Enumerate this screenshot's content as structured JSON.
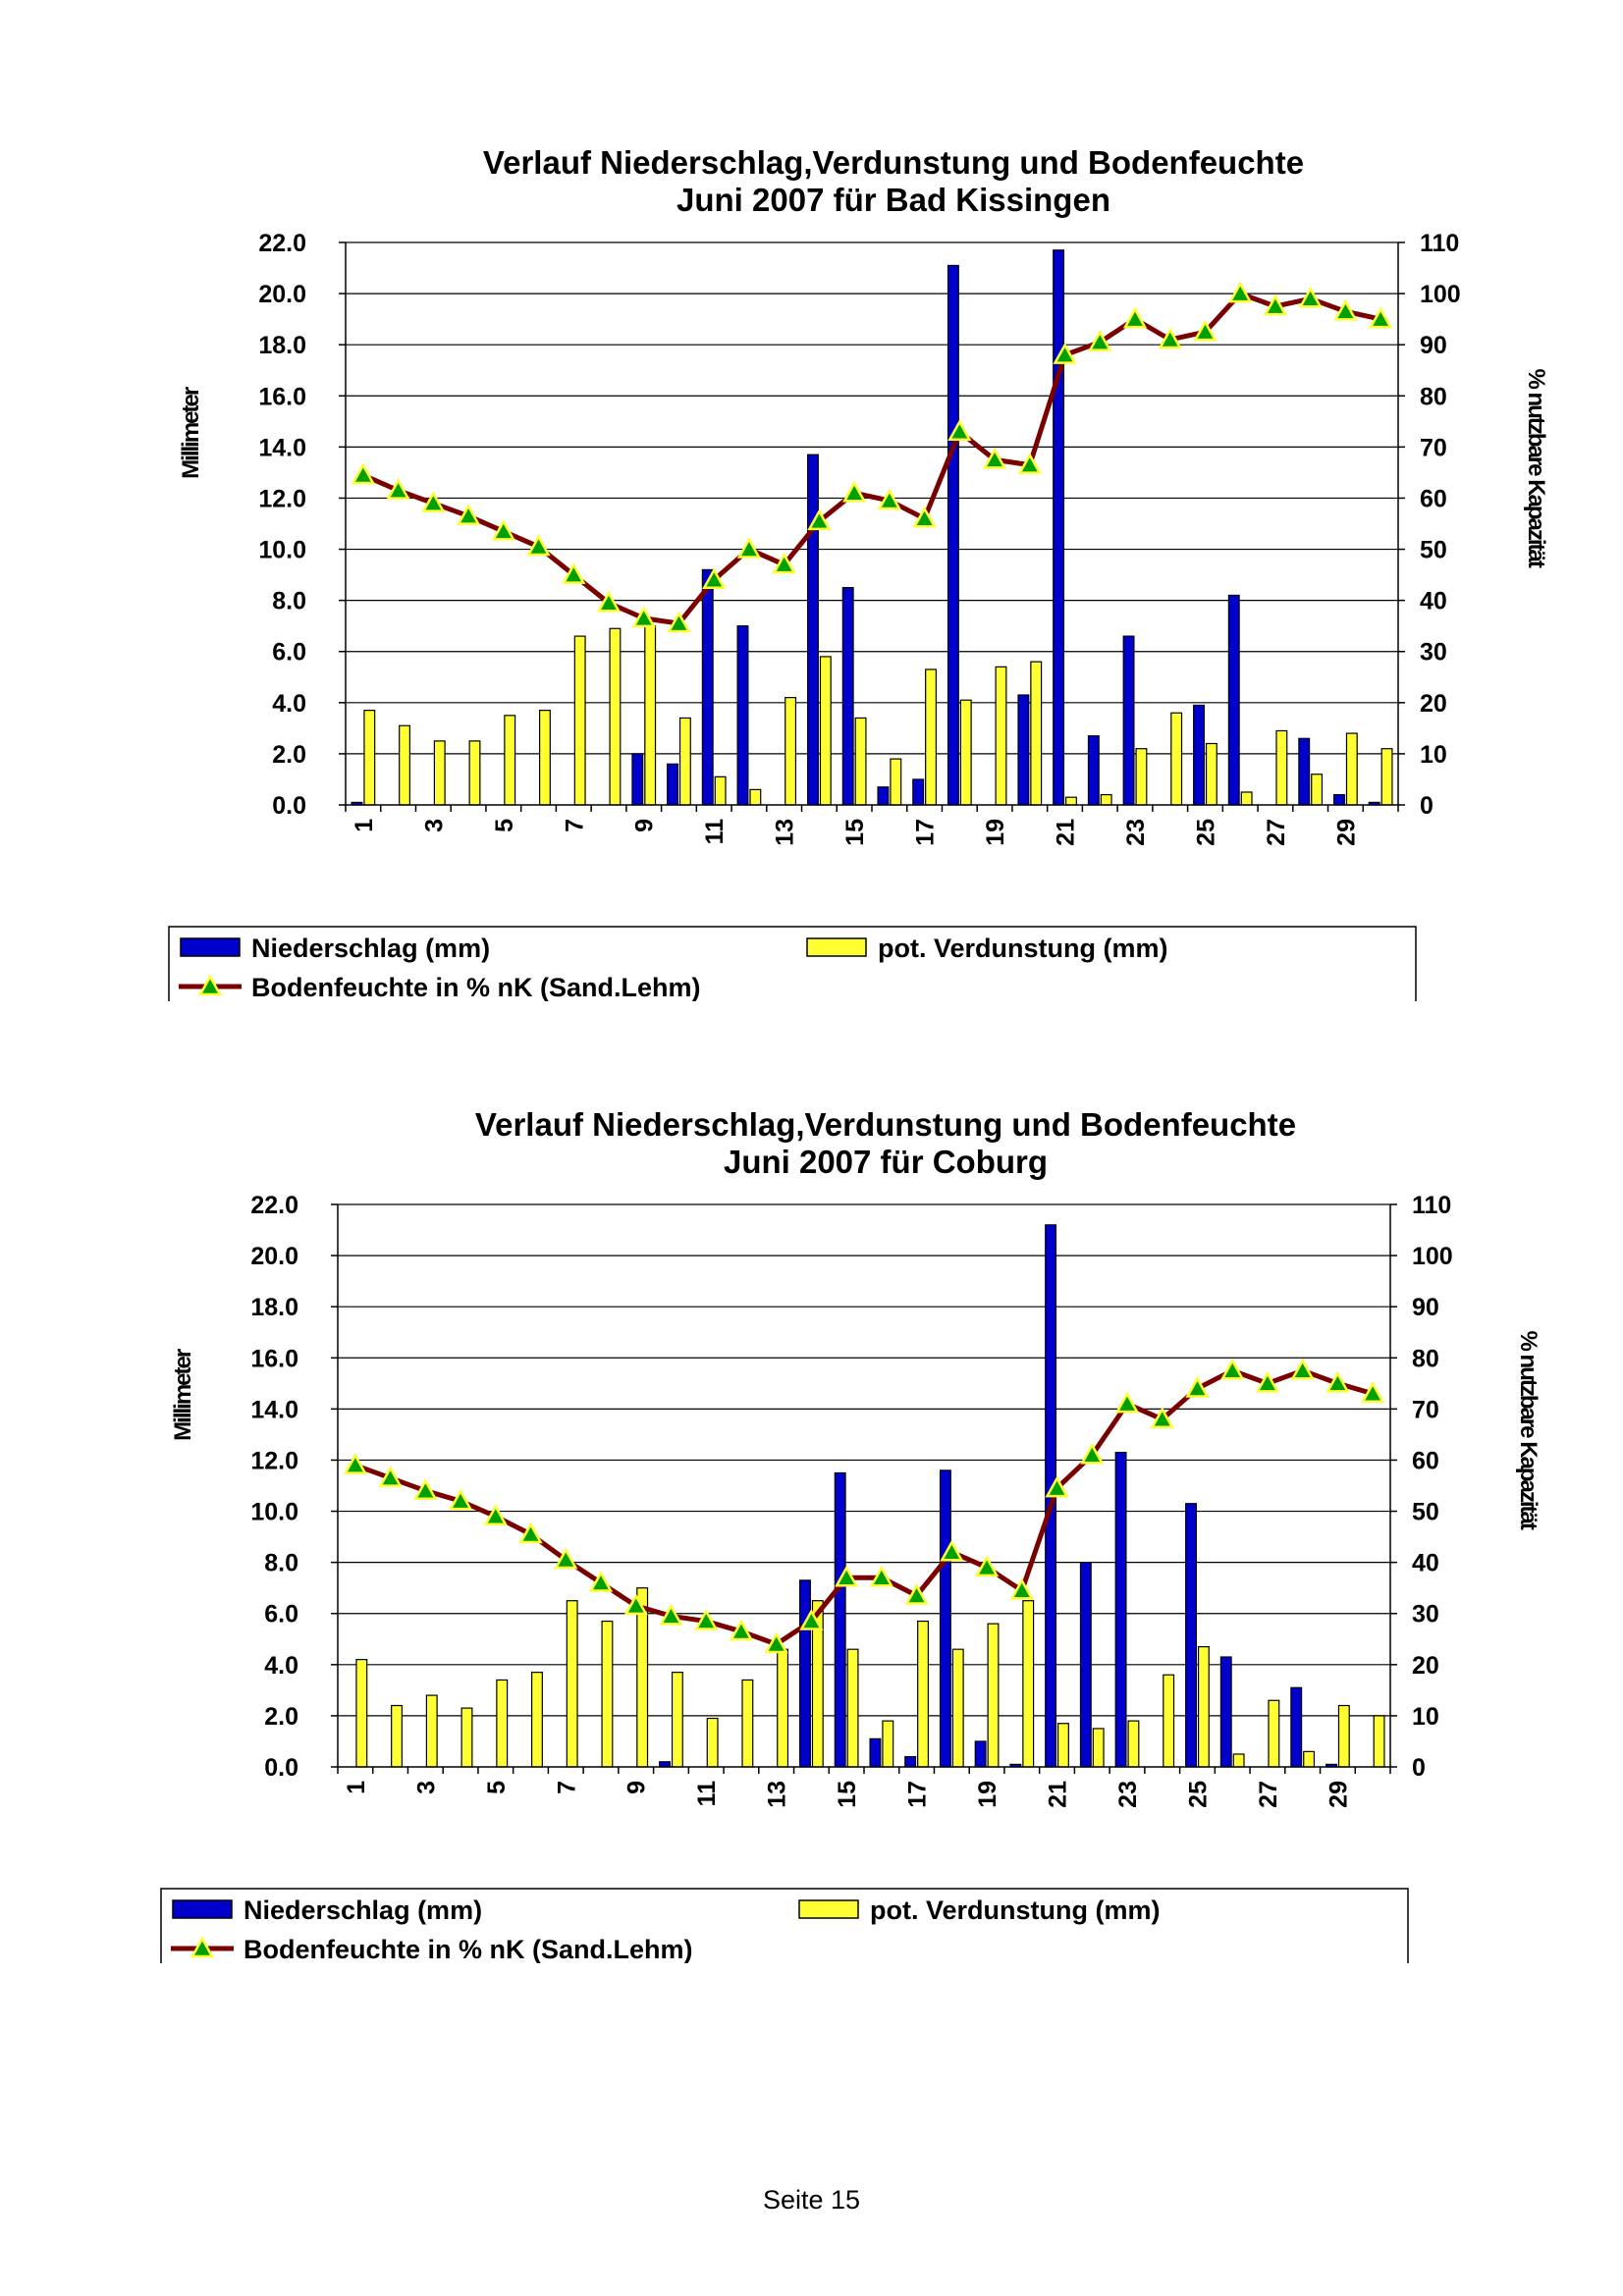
{
  "page": {
    "footer": "Seite 15"
  },
  "colors": {
    "precip": "#0000cc",
    "evap": "#ffff33",
    "moisture": "#7a0000",
    "marker": "#00a000"
  },
  "chart_data": [
    {
      "type": "bar",
      "title": "Verlauf Niederschlag,Verdunstung und Bodenfeuchte",
      "subtitle": "Juni  2007 für Bad Kissingen",
      "ylabel": "Millimeter",
      "y2label": "% nutzbare Kapazität",
      "ylim": [
        0,
        22
      ],
      "y2lim": [
        0,
        110
      ],
      "grid": true,
      "y_ticks": [
        "0.0",
        "2.0",
        "4.0",
        "6.0",
        "8.0",
        "10.0",
        "12.0",
        "14.0",
        "16.0",
        "18.0",
        "20.0",
        "22.0"
      ],
      "y2_ticks": [
        "0",
        "10",
        "20",
        "30",
        "40",
        "50",
        "60",
        "70",
        "80",
        "90",
        "100",
        "110"
      ],
      "x_ticks": [
        "1",
        "3",
        "5",
        "7",
        "9",
        "11",
        "13",
        "15",
        "17",
        "19",
        "21",
        "23",
        "25",
        "27",
        "29"
      ],
      "legend": [
        "Niederschlag (mm)",
        "pot. Verdunstung (mm)",
        "Bodenfeuchte in % nK (Sand.Lehm)"
      ],
      "legend_position": "bottom",
      "x": [
        1,
        2,
        3,
        4,
        5,
        6,
        7,
        8,
        9,
        10,
        11,
        12,
        13,
        14,
        15,
        16,
        17,
        18,
        19,
        20,
        21,
        22,
        23,
        24,
        25,
        26,
        27,
        28,
        29,
        30
      ],
      "series": [
        {
          "name": "Niederschlag (mm)",
          "type": "bar",
          "values": [
            0.1,
            0,
            0,
            0,
            0,
            0,
            0,
            0,
            2.0,
            1.6,
            9.2,
            7.0,
            0,
            13.7,
            8.5,
            0.7,
            1.0,
            21.1,
            0,
            4.3,
            21.7,
            2.7,
            6.6,
            0,
            3.9,
            8.2,
            0,
            2.6,
            0.4,
            0.1
          ]
        },
        {
          "name": "pot. Verdunstung (mm)",
          "type": "bar",
          "values": [
            3.7,
            3.1,
            2.5,
            2.5,
            3.5,
            3.7,
            6.6,
            6.9,
            7.0,
            3.4,
            1.1,
            0.6,
            4.2,
            5.8,
            3.4,
            1.8,
            5.3,
            4.1,
            5.4,
            5.6,
            0.3,
            0.4,
            2.2,
            3.6,
            2.4,
            0.5,
            2.9,
            1.2,
            2.8,
            2.2
          ]
        },
        {
          "name": "Bodenfeuchte in % nK (Sand.Lehm)",
          "type": "line",
          "axis": "right",
          "values": [
            64.5,
            61.5,
            59,
            56.5,
            53.5,
            50.5,
            45,
            39.5,
            36.5,
            35.5,
            44,
            50,
            47,
            55.5,
            61,
            59.5,
            56,
            73,
            67.5,
            66.5,
            88,
            90.5,
            95,
            91,
            92.5,
            100,
            97.5,
            99,
            96.5,
            95
          ]
        }
      ]
    },
    {
      "type": "bar",
      "title": "Verlauf Niederschlag,Verdunstung und Bodenfeuchte",
      "subtitle": "Juni 2007 für Coburg",
      "ylabel": "Millimeter",
      "y2label": "% nutzbare Kapazität",
      "ylim": [
        0,
        22
      ],
      "y2lim": [
        0,
        110
      ],
      "grid": true,
      "y_ticks": [
        "0.0",
        "2.0",
        "4.0",
        "6.0",
        "8.0",
        "10.0",
        "12.0",
        "14.0",
        "16.0",
        "18.0",
        "20.0",
        "22.0"
      ],
      "y2_ticks": [
        "0",
        "10",
        "20",
        "30",
        "40",
        "50",
        "60",
        "70",
        "80",
        "90",
        "100",
        "110"
      ],
      "x_ticks": [
        "1",
        "3",
        "5",
        "7",
        "9",
        "11",
        "13",
        "15",
        "17",
        "19",
        "21",
        "23",
        "25",
        "27",
        "29"
      ],
      "legend": [
        "Niederschlag (mm)",
        "pot. Verdunstung (mm)",
        "Bodenfeuchte in % nK (Sand.Lehm)"
      ],
      "legend_position": "bottom",
      "x": [
        1,
        2,
        3,
        4,
        5,
        6,
        7,
        8,
        9,
        10,
        11,
        12,
        13,
        14,
        15,
        16,
        17,
        18,
        19,
        20,
        21,
        22,
        23,
        24,
        25,
        26,
        27,
        28,
        29,
        30
      ],
      "series": [
        {
          "name": "Niederschlag (mm)",
          "type": "bar",
          "values": [
            0,
            0,
            0,
            0,
            0,
            0,
            0,
            0,
            0,
            0.2,
            0,
            0,
            0,
            7.3,
            11.5,
            1.1,
            0.4,
            11.6,
            1.0,
            0.1,
            21.2,
            8.0,
            12.3,
            0,
            10.3,
            4.3,
            0,
            3.1,
            0.1,
            0
          ]
        },
        {
          "name": "pot. Verdunstung (mm)",
          "type": "bar",
          "values": [
            4.2,
            2.4,
            2.8,
            2.3,
            3.4,
            3.7,
            6.5,
            5.7,
            7.0,
            3.7,
            1.9,
            3.4,
            4.6,
            6.5,
            4.6,
            1.8,
            5.7,
            4.6,
            5.6,
            6.5,
            1.7,
            1.5,
            1.8,
            3.6,
            4.7,
            0.5,
            2.6,
            0.6,
            2.4,
            2.0
          ]
        },
        {
          "name": "Bodenfeuchte in % nK (Sand.Lehm)",
          "type": "line",
          "axis": "right",
          "values": [
            59,
            56.5,
            54,
            52,
            49,
            45.5,
            40.5,
            36,
            31.5,
            29.5,
            28.5,
            26.5,
            24,
            28.5,
            37,
            37,
            33.5,
            42,
            39,
            34.5,
            54.5,
            61,
            71,
            68,
            74,
            77.5,
            75,
            77.5,
            75,
            73
          ]
        }
      ]
    }
  ]
}
